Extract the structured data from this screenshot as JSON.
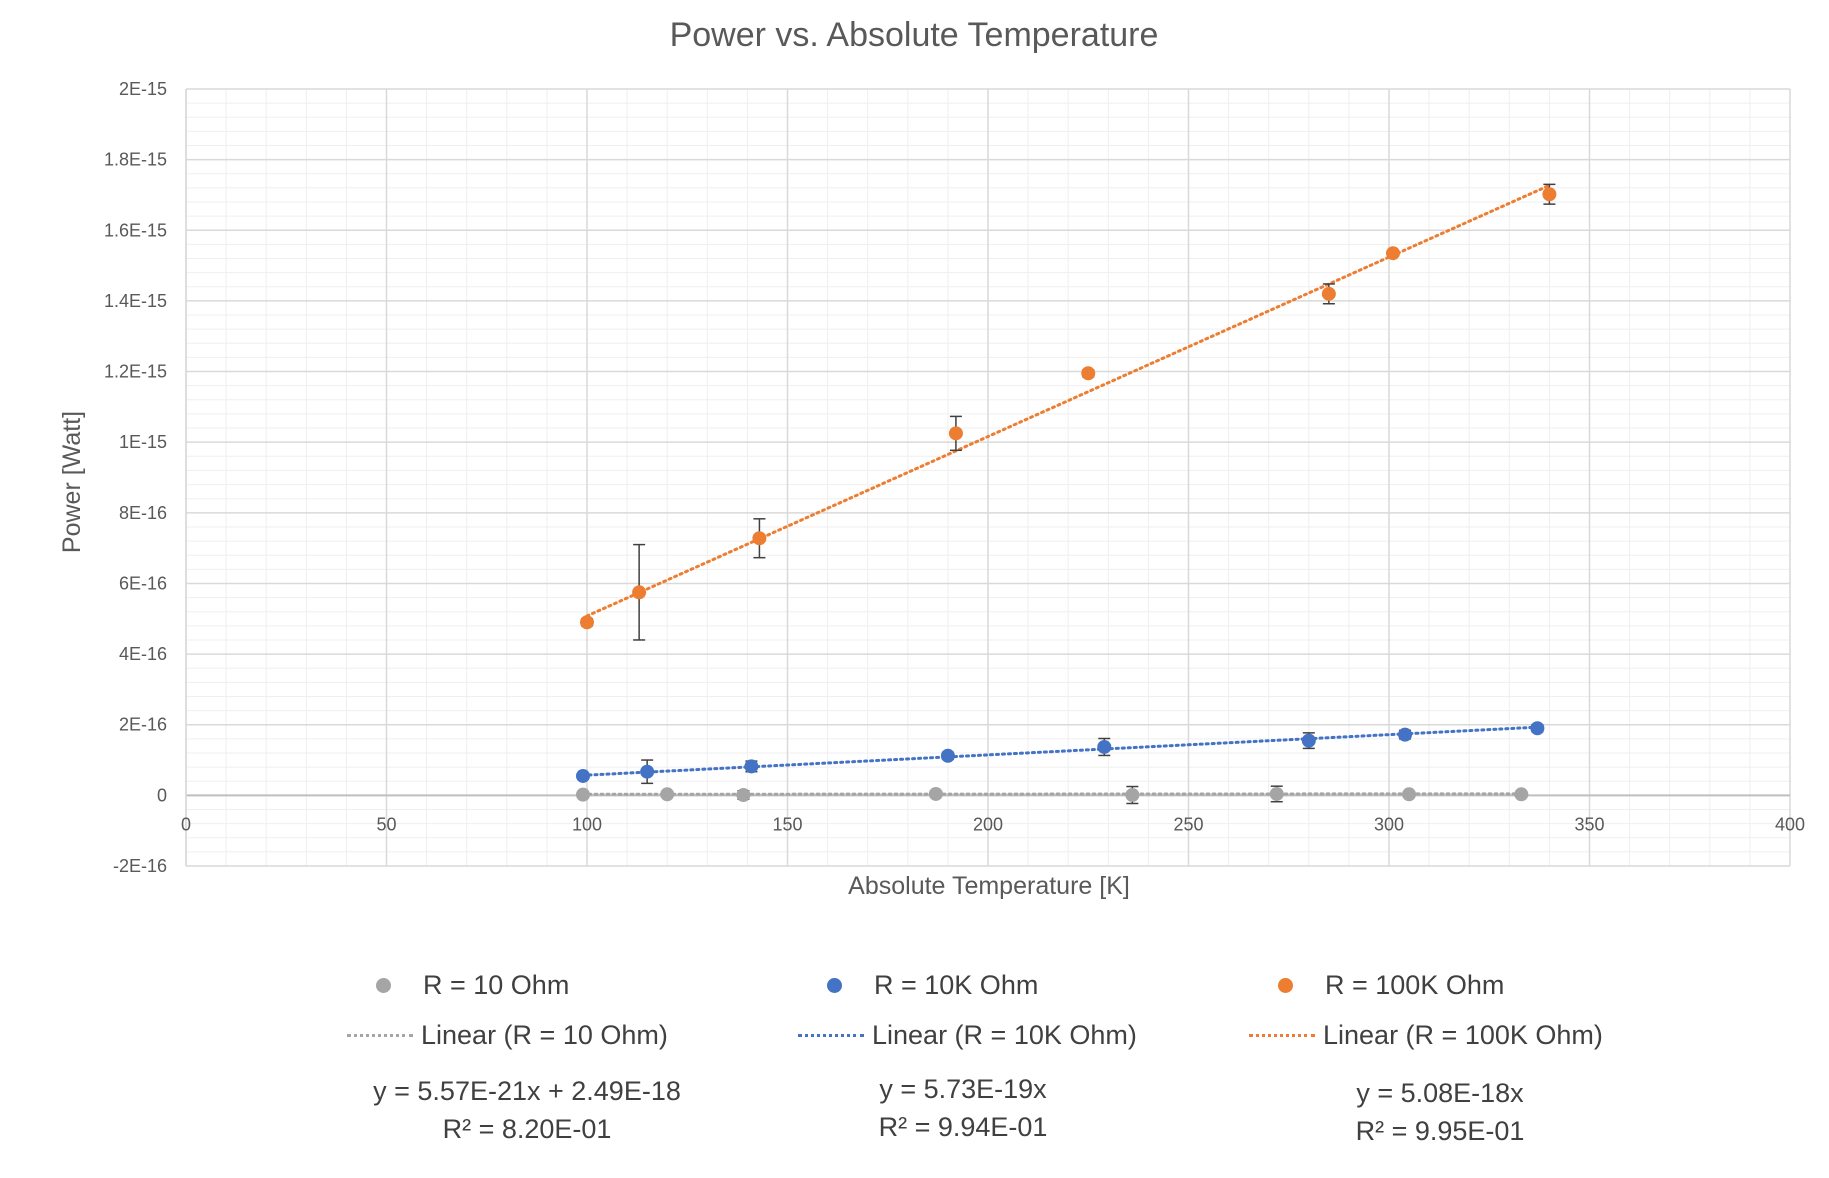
{
  "chart_data": {
    "type": "scatter",
    "title": "Power vs. Absolute Temperature",
    "xlabel": "Absolute Temperature [K]",
    "ylabel": "Power [Watt]",
    "xlim": [
      0,
      400
    ],
    "ylim": [
      -2e-16,
      2e-15
    ],
    "x_ticks": [
      "0",
      "50",
      "100",
      "150",
      "200",
      "250",
      "300",
      "350",
      "400"
    ],
    "y_ticks": [
      "-2E-16",
      "0",
      "2E-16",
      "4E-16",
      "6E-16",
      "8E-16",
      "1E-15",
      "1.2E-15",
      "1.4E-15",
      "1.6E-15",
      "1.8E-15",
      "2E-15"
    ],
    "grid": true,
    "legend_position": "bottom",
    "series": [
      {
        "name": "R = 10 Ohm",
        "color": "#a5a5a5",
        "points": [
          {
            "x": 99,
            "y": 2e-18,
            "err": 0
          },
          {
            "x": 120,
            "y": 3e-18,
            "err": 0
          },
          {
            "x": 139,
            "y": 1e-18,
            "err": 1.2e-17
          },
          {
            "x": 187,
            "y": 4e-18,
            "err": 8e-18
          },
          {
            "x": 236,
            "y": 1e-18,
            "err": 2.4e-17
          },
          {
            "x": 272,
            "y": 4e-18,
            "err": 2.2e-17
          },
          {
            "x": 305,
            "y": 3e-18,
            "err": 0
          },
          {
            "x": 333,
            "y": 3e-18,
            "err": 0
          }
        ],
        "trendline": {
          "name": "Linear (R = 10 Ohm)",
          "equation": "y = 5.57E-21x + 2.49E-18",
          "r2": "R² = 8.20E-01",
          "slope": 5.57e-21,
          "intercept": 2.49e-18
        }
      },
      {
        "name": "R = 10K Ohm",
        "color": "#4472c4",
        "points": [
          {
            "x": 99,
            "y": 5.5e-17,
            "err": 0
          },
          {
            "x": 115,
            "y": 6.7e-17,
            "err": 3.3e-17
          },
          {
            "x": 141,
            "y": 8.2e-17,
            "err": 1.5e-17
          },
          {
            "x": 190,
            "y": 1.12e-16,
            "err": 1e-17
          },
          {
            "x": 229,
            "y": 1.37e-16,
            "err": 2.4e-17
          },
          {
            "x": 280,
            "y": 1.55e-16,
            "err": 2.2e-17
          },
          {
            "x": 304,
            "y": 1.72e-16,
            "err": 1.2e-17
          },
          {
            "x": 337,
            "y": 1.9e-16,
            "err": 1e-17
          }
        ],
        "trendline": {
          "name": "Linear (R = 10K Ohm)",
          "equation": "y = 5.73E-19x",
          "r2": "R² = 9.94E-01",
          "slope": 5.73e-19,
          "intercept": 0
        }
      },
      {
        "name": "R = 100K Ohm",
        "color": "#ed7d31",
        "points": [
          {
            "x": 100,
            "y": 4.9e-16,
            "err": 1e-17
          },
          {
            "x": 113,
            "y": 5.75e-16,
            "err": 1.35e-16
          },
          {
            "x": 143,
            "y": 7.28e-16,
            "err": 5.5e-17
          },
          {
            "x": 192,
            "y": 1.025e-15,
            "err": 4.8e-17
          },
          {
            "x": 225,
            "y": 1.195e-15,
            "err": 1e-17
          },
          {
            "x": 285,
            "y": 1.42e-15,
            "err": 2.8e-17
          },
          {
            "x": 301,
            "y": 1.535e-15,
            "err": 8e-18
          },
          {
            "x": 340,
            "y": 1.702e-15,
            "err": 2.8e-17
          }
        ],
        "trendline": {
          "name": "Linear (R = 100K Ohm)",
          "equation": "y = 5.08E-18x",
          "r2": "R² = 9.95E-01",
          "slope": 5.08e-18,
          "intercept": 0
        }
      }
    ]
  }
}
